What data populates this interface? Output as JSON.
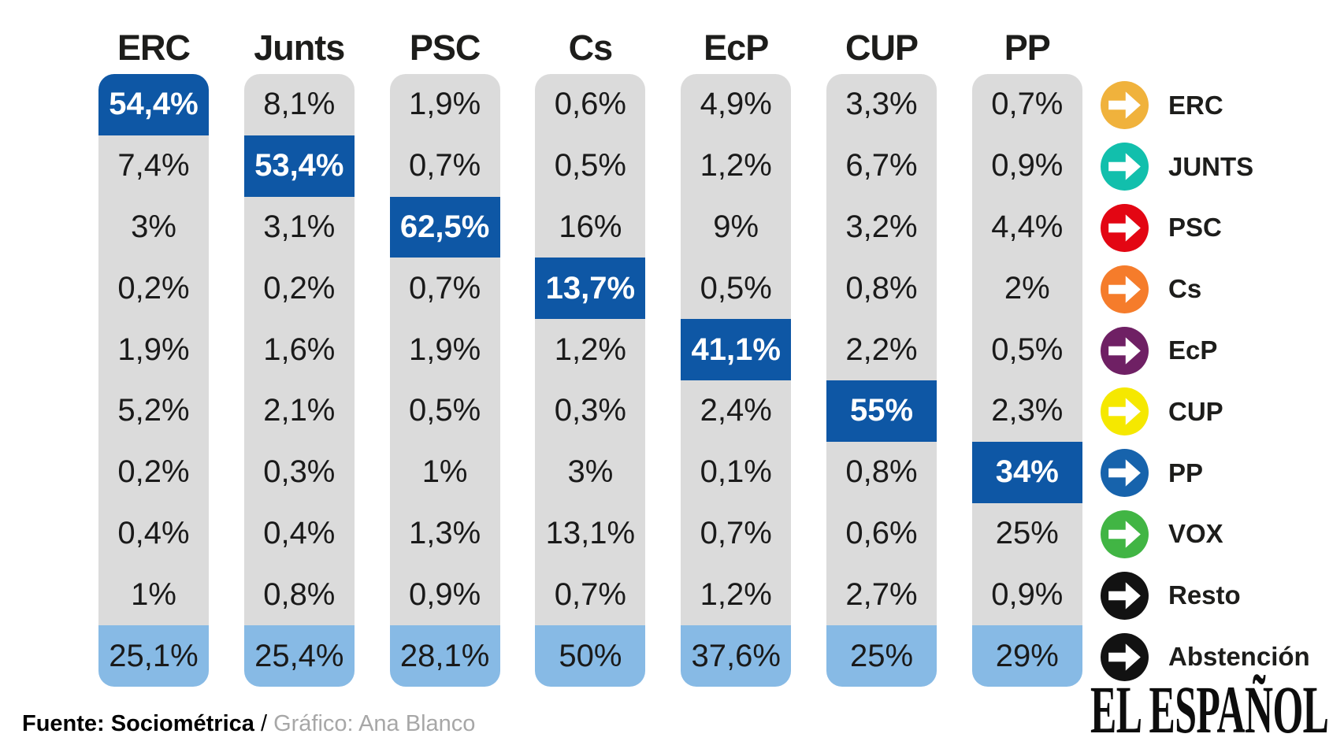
{
  "chart_data": {
    "type": "table",
    "subtype": "vote-transfer-matrix",
    "title": "",
    "row_labels": [
      "ERC",
      "JUNTS",
      "PSC",
      "Cs",
      "EcP",
      "CUP",
      "PP",
      "VOX",
      "Resto",
      "Abstención"
    ],
    "columns": [
      {
        "header": "ERC",
        "cells": [
          "54,4%",
          "7,4%",
          "3%",
          "0,2%",
          "1,9%",
          "5,2%",
          "0,2%",
          "0,4%",
          "1%",
          "25,1%"
        ],
        "values": [
          54.4,
          7.4,
          3,
          0.2,
          1.9,
          5.2,
          0.2,
          0.4,
          1,
          25.1
        ],
        "highlight_index": 0
      },
      {
        "header": "Junts",
        "cells": [
          "8,1%",
          "53,4%",
          "3,1%",
          "0,2%",
          "1,6%",
          "2,1%",
          "0,3%",
          "0,4%",
          "0,8%",
          "25,4%"
        ],
        "values": [
          8.1,
          53.4,
          3.1,
          0.2,
          1.6,
          2.1,
          0.3,
          0.4,
          0.8,
          25.4
        ],
        "highlight_index": 1
      },
      {
        "header": "PSC",
        "cells": [
          "1,9%",
          "0,7%",
          "62,5%",
          "0,7%",
          "1,9%",
          "0,5%",
          "1%",
          "1,3%",
          "0,9%",
          "28,1%"
        ],
        "values": [
          1.9,
          0.7,
          62.5,
          0.7,
          1.9,
          0.5,
          1,
          1.3,
          0.9,
          28.1
        ],
        "highlight_index": 2
      },
      {
        "header": "Cs",
        "cells": [
          "0,6%",
          "0,5%",
          "16%",
          "13,7%",
          "1,2%",
          "0,3%",
          "3%",
          "13,1%",
          "0,7%",
          "50%"
        ],
        "values": [
          0.6,
          0.5,
          16,
          13.7,
          1.2,
          0.3,
          3,
          13.1,
          0.7,
          50
        ],
        "highlight_index": 3
      },
      {
        "header": "EcP",
        "cells": [
          "4,9%",
          "1,2%",
          "9%",
          "0,5%",
          "41,1%",
          "2,4%",
          "0,1%",
          "0,7%",
          "1,2%",
          "37,6%"
        ],
        "values": [
          4.9,
          1.2,
          9,
          0.5,
          41.1,
          2.4,
          0.1,
          0.7,
          1.2,
          37.6
        ],
        "highlight_index": 4
      },
      {
        "header": "CUP",
        "cells": [
          "3,3%",
          "6,7%",
          "3,2%",
          "0,8%",
          "2,2%",
          "55%",
          "0,8%",
          "0,6%",
          "2,7%",
          "25%"
        ],
        "values": [
          3.3,
          6.7,
          3.2,
          0.8,
          2.2,
          55,
          0.8,
          0.6,
          2.7,
          25
        ],
        "highlight_index": 5
      },
      {
        "header": "PP",
        "cells": [
          "0,7%",
          "0,9%",
          "4,4%",
          "2%",
          "0,5%",
          "2,3%",
          "34%",
          "25%",
          "0,9%",
          "29%"
        ],
        "values": [
          0.7,
          0.9,
          4.4,
          2,
          0.5,
          2.3,
          34,
          25,
          0.9,
          29
        ],
        "highlight_index": 6
      }
    ],
    "last_row_label": "Abstención",
    "legend_position": "right",
    "grid": false
  },
  "legend": {
    "items": [
      {
        "label": "ERC",
        "color": "#F0B23C",
        "icon": "arrow-right-circle"
      },
      {
        "label": "JUNTS",
        "color": "#12BFAC",
        "icon": "arrow-right-circle"
      },
      {
        "label": "PSC",
        "color": "#E30613",
        "icon": "arrow-right-circle"
      },
      {
        "label": "Cs",
        "color": "#F57C2B",
        "icon": "arrow-right-circle"
      },
      {
        "label": "EcP",
        "color": "#6F2064",
        "icon": "arrow-right-circle"
      },
      {
        "label": "CUP",
        "color": "#F5E800",
        "icon": "arrow-right-circle"
      },
      {
        "label": "PP",
        "color": "#1763AC",
        "icon": "arrow-right-circle"
      },
      {
        "label": "VOX",
        "color": "#41B544",
        "icon": "arrow-right-circle"
      },
      {
        "label": "Resto",
        "color": "#121212",
        "icon": "arrow-right-circle"
      },
      {
        "label": "Abstención",
        "color": "#121212",
        "icon": "arrow-right-circle"
      }
    ]
  },
  "footer": {
    "source_bold": "Fuente: Sociométrica",
    "separator": " / ",
    "credit": "Gráfico: Ana Blanco"
  },
  "brand": {
    "logo_text": "EL ESPAÑOL"
  },
  "colors": {
    "cell_gray": "#DBDBDB",
    "highlight_blue": "#0E57A5",
    "abstention_blue": "#87BAE5",
    "header_text": "#1D1D1B",
    "footer_credit_gray": "#A7A7A7"
  }
}
